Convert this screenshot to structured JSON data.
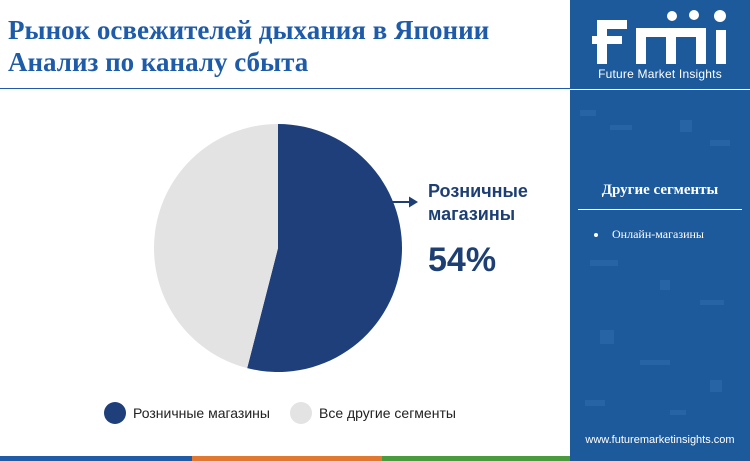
{
  "title": {
    "line1": "Рынок освежителей дыхания в Японии",
    "line2": "Анализ по каналу сбыта"
  },
  "chart_data": {
    "type": "pie",
    "slices": [
      {
        "label": "Розничные магазины",
        "value": 54,
        "color": "#1e3f7a"
      },
      {
        "label": "Все другие сегменты",
        "value": 46,
        "color": "#e3e3e3"
      }
    ],
    "start_angle_deg": 0,
    "direction": "clockwise",
    "callout": {
      "label_line1": "Розничные",
      "label_line2": "магазины",
      "value_text": "54%",
      "color": "#1e3f73"
    },
    "legend": [
      {
        "label": "Розничные магазины",
        "color": "#1e3f7a"
      },
      {
        "label": "Все другие сегменты",
        "color": "#e3e3e3"
      }
    ],
    "legend_position": "bottom"
  },
  "sidebar": {
    "logo_text": "fmi",
    "logo_subtitle": "Future Market Insights",
    "segments_title": "Другие сегменты",
    "segments": [
      "Онлайн-магазины"
    ],
    "website": "www.futuremarketinsights.com"
  },
  "colors": {
    "accent": "#1e5ba8",
    "sidebar": "#1d5a9c",
    "bottom_bar": [
      "#1e5ba8",
      "#e2772f",
      "#4a9a3e",
      "#1e5ba8"
    ]
  }
}
